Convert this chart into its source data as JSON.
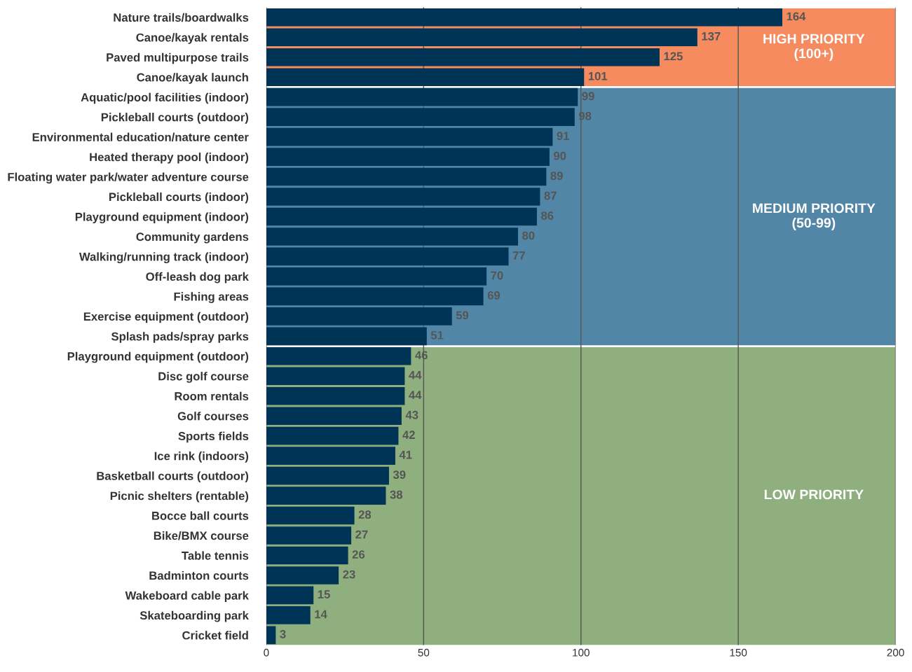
{
  "chart_data": {
    "type": "bar",
    "orientation": "horizontal",
    "categories": [
      "Nature trails/boardwalks",
      "Canoe/kayak rentals",
      "Paved multipurpose trails",
      "Canoe/kayak launch",
      "Aquatic/pool facilities (indoor)",
      "Pickleball courts (outdoor)",
      "Environmental education/nature center",
      "Heated therapy pool (indoor)",
      "Floating water park/water adventure course",
      "Pickleball courts (indoor)",
      "Playground equipment (indoor)",
      "Community gardens",
      "Walking/running track (indoor)",
      "Off-leash dog park",
      "Fishing areas",
      "Exercise equipment (outdoor)",
      "Splash pads/spray parks",
      "Playground equipment (outdoor)",
      "Disc golf course",
      "Room rentals",
      "Golf courses",
      "Sports fields",
      "Ice rink (indoors)",
      "Basketball courts (outdoor)",
      "Picnic shelters (rentable)",
      "Bocce ball courts",
      "Bike/BMX course",
      "Table tennis",
      "Badminton courts",
      "Wakeboard cable park",
      "Skateboarding park",
      "Cricket field"
    ],
    "values": [
      164,
      137,
      125,
      101,
      99,
      98,
      91,
      90,
      89,
      87,
      86,
      80,
      77,
      70,
      69,
      59,
      51,
      46,
      44,
      44,
      43,
      42,
      41,
      39,
      38,
      28,
      27,
      26,
      23,
      15,
      14,
      3
    ],
    "color": "#003457",
    "data_labels": true,
    "xlim": [
      0,
      200
    ],
    "xticks": [
      0,
      50,
      100,
      150,
      200
    ],
    "grid": "x",
    "bands": [
      {
        "axis": "y",
        "from": "Nature trails/boardwalks",
        "to": "Canoe/kayak launch",
        "label": "HIGH PRIORITY\n(100+)",
        "color": "#f58b5e"
      },
      {
        "axis": "y",
        "from": "Aquatic/pool facilities (indoor)",
        "to": "Splash pads/spray parks",
        "label": "MEDIUM PRIORITY\n(50-99)",
        "color": "#5286a6"
      },
      {
        "axis": "y",
        "from": "Playground equipment (outdoor)",
        "to": "Cricket field",
        "label": "LOW PRIORITY",
        "color": "#8fb07e"
      }
    ]
  }
}
